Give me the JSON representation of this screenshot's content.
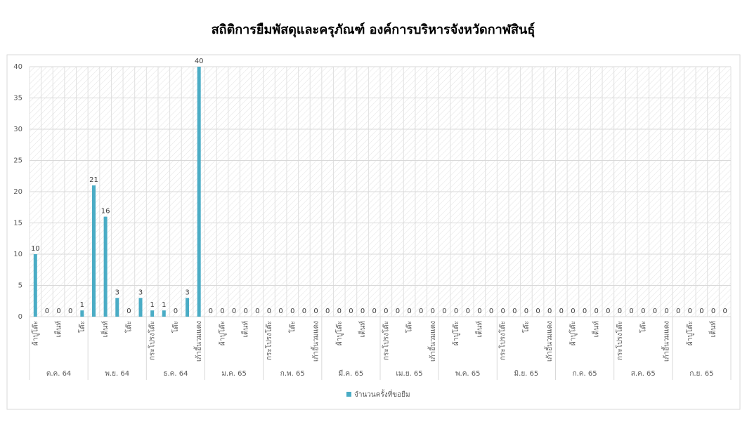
{
  "chart_data": {
    "type": "bar",
    "title": "สถิติการยืมพัสดุและครุภัณฑ์ องค์การบริหารจังหวัดกาฬสินธุ์",
    "groups": [
      "ต.ค. 64",
      "พ.ย. 64",
      "ธ.ค. 64",
      "ม.ค. 65",
      "ก.พ. 65",
      "มี.ค. 65",
      "เม.ย. 65",
      "พ.ค. 65",
      "มิ.ย. 65",
      "ก.ค. 65",
      "ส.ค. 65",
      "ก.ย. 65"
    ],
    "categories": [
      "ผ้าปูโต๊ะ",
      null,
      "เต็นท์",
      null,
      "โต๊ะ",
      null,
      "เต็นท์",
      null,
      "โต๊ะ",
      null,
      "กระโปรงโต๊ะ",
      null,
      "โต๊ะ",
      null,
      "เก้าอี้นวมแดง",
      null,
      "ผ้าปูโต๊ะ",
      null,
      "เต็นท์",
      null,
      "กระโปรงโต๊ะ",
      null,
      "โต๊ะ",
      null,
      "เก้าอี้นวมแดง",
      null,
      "ผ้าปูโต๊ะ",
      null,
      "เต็นท์",
      null,
      "กระโปรงโต๊ะ",
      null,
      "โต๊ะ",
      null,
      "เก้าอี้นวมแดง",
      null,
      "ผ้าปูโต๊ะ",
      null,
      "เต็นท์",
      null,
      "กระโปรงโต๊ะ",
      null,
      "โต๊ะ",
      null,
      "เก้าอี้นวมแดง",
      null,
      "ผ้าปูโต๊ะ",
      null,
      "เต็นท์",
      null,
      "กระโปรงโต๊ะ",
      null,
      "โต๊ะ",
      null,
      "เก้าอี้นวมแดง",
      null,
      "ผ้าปูโต๊ะ",
      null,
      "เต็นท์",
      null
    ],
    "series": [
      {
        "name": "จำนวนครั้งที่ขอยืม",
        "color": "#4aacc5",
        "values": [
          10,
          0,
          0,
          0,
          1,
          21,
          16,
          3,
          0,
          3,
          1,
          1,
          0,
          3,
          40,
          0,
          0,
          0,
          0,
          0,
          0,
          0,
          0,
          0,
          0,
          0,
          0,
          0,
          0,
          0,
          0,
          0,
          0,
          0,
          0,
          0,
          0,
          0,
          0,
          0,
          0,
          0,
          0,
          0,
          0,
          0,
          0,
          0,
          0,
          0,
          0,
          0,
          0,
          0,
          0,
          0,
          0,
          0,
          0,
          0
        ]
      }
    ],
    "ylim": [
      0,
      40
    ],
    "yticks": [
      0,
      5,
      10,
      15,
      20,
      25,
      30,
      35,
      40
    ],
    "grid": true,
    "legend": "bottom"
  }
}
